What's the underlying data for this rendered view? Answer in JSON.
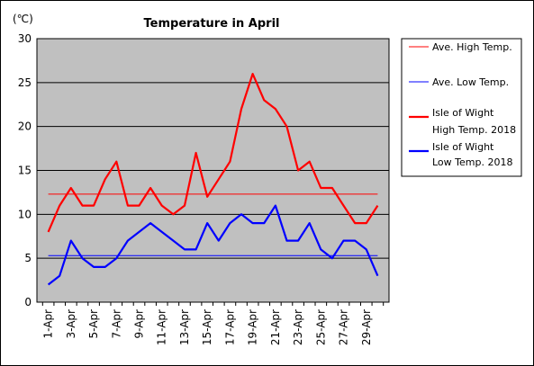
{
  "chart_data": {
    "type": "line",
    "title": "Temperature in April",
    "unit_label": "(℃)",
    "ylim": [
      0,
      30
    ],
    "y_ticks": [
      0,
      5,
      10,
      15,
      20,
      25,
      30
    ],
    "x": [
      1,
      2,
      3,
      4,
      5,
      6,
      7,
      8,
      9,
      10,
      11,
      12,
      13,
      14,
      15,
      16,
      17,
      18,
      19,
      20,
      21,
      22,
      23,
      24,
      25,
      26,
      27,
      28,
      29,
      30
    ],
    "x_tick_labels": [
      "1-Apr",
      "3-Apr",
      "5-Apr",
      "7-Apr",
      "9-Apr",
      "11-Apr",
      "13-Apr",
      "15-Apr",
      "17-Apr",
      "19-Apr",
      "21-Apr",
      "23-Apr",
      "25-Apr",
      "27-Apr",
      "29-Apr"
    ],
    "grid": true,
    "legend_position": "right",
    "series": [
      {
        "name": "Ave. High Temp.",
        "color": "#ff0000",
        "thick": false,
        "values": [
          12.3,
          12.3,
          12.3,
          12.3,
          12.3,
          12.3,
          12.3,
          12.3,
          12.3,
          12.3,
          12.3,
          12.3,
          12.3,
          12.3,
          12.3,
          12.3,
          12.3,
          12.3,
          12.3,
          12.3,
          12.3,
          12.3,
          12.3,
          12.3,
          12.3,
          12.3,
          12.3,
          12.3,
          12.3,
          12.3
        ]
      },
      {
        "name": "Ave. Low Temp.",
        "color": "#0000ff",
        "thick": false,
        "values": [
          5.3,
          5.3,
          5.3,
          5.3,
          5.3,
          5.3,
          5.3,
          5.3,
          5.3,
          5.3,
          5.3,
          5.3,
          5.3,
          5.3,
          5.3,
          5.3,
          5.3,
          5.3,
          5.3,
          5.3,
          5.3,
          5.3,
          5.3,
          5.3,
          5.3,
          5.3,
          5.3,
          5.3,
          5.3,
          5.3
        ]
      },
      {
        "name": "Isle of Wight\nHigh Temp. 2018",
        "color": "#ff0000",
        "thick": true,
        "values": [
          8,
          11,
          13,
          11,
          11,
          14,
          16,
          11,
          11,
          13,
          11,
          10,
          11,
          17,
          12,
          14,
          16,
          22,
          26,
          23,
          22,
          20,
          15,
          16,
          13,
          13,
          11,
          9,
          9,
          11
        ]
      },
      {
        "name": "Isle of Wight\nLow Temp. 2018",
        "color": "#0000ff",
        "thick": true,
        "values": [
          2,
          3,
          7,
          5,
          4,
          4,
          5,
          7,
          8,
          9,
          8,
          7,
          6,
          6,
          9,
          7,
          9,
          10,
          9,
          9,
          11,
          7,
          7,
          9,
          6,
          5,
          7,
          7,
          6,
          3
        ]
      }
    ]
  }
}
